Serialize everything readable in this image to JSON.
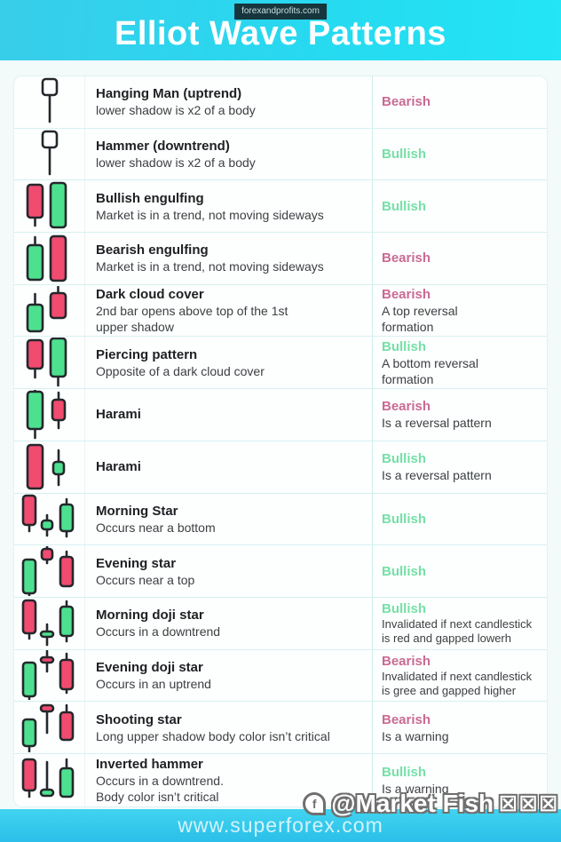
{
  "header": {
    "badge": "forexandprofits.com",
    "title": "Elliot Wave Patterns"
  },
  "footer": {
    "url": "www.superforex.com"
  },
  "watermark": {
    "icon": "messenger-icon",
    "icon_glyph": "f",
    "handle": "@Market Fish",
    "boxes": "☒☒☒"
  },
  "colors": {
    "header_cyan_left": "#38cdea",
    "header_cyan_right": "#22e5f5",
    "footer_cyan": "#2bbfe9",
    "bullish": "#74e0a7",
    "bearish": "#c96b93",
    "candle_red": "#f14b70",
    "candle_green": "#4de18f",
    "candle_white": "#ffffff",
    "outline": "#24282c"
  },
  "rows": [
    {
      "name": "Hanging Man (uptrend)",
      "desc": "lower shadow is x2 of a body",
      "signal": "Bearish",
      "type": "bearish",
      "note": "",
      "icon": "hanging-man-icon",
      "candles": [
        {
          "x": 24,
          "w": 16,
          "bt": 2,
          "bh": 18,
          "wt": 20,
          "wb": 50,
          "c": "w"
        }
      ]
    },
    {
      "name": "Hammer (downtrend)",
      "desc": "lower shadow is x2 of a body",
      "signal": "Bullish",
      "type": "bullish",
      "note": "",
      "icon": "hammer-icon",
      "candles": [
        {
          "x": 24,
          "w": 16,
          "bt": 2,
          "bh": 18,
          "wt": 20,
          "wb": 50,
          "c": "w"
        }
      ]
    },
    {
      "name": "Bullish engulfing",
      "desc": "Market is in a trend, not moving sideways",
      "signal": "Bullish",
      "type": "bullish",
      "note": "",
      "icon": "bullish-engulfing-icon",
      "candles": [
        {
          "x": 7,
          "w": 17,
          "bt": 4,
          "bh": 37,
          "wt": 41,
          "wb": 50,
          "c": "r"
        },
        {
          "x": 33,
          "w": 17,
          "bt": 2,
          "bh": 50,
          "c": "g"
        }
      ]
    },
    {
      "name": "Bearish engulfing",
      "desc": "Market is in a trend, not moving sideways",
      "signal": "Bearish",
      "type": "bearish",
      "note": "",
      "icon": "bearish-engulfing-icon",
      "candles": [
        {
          "x": 7,
          "w": 17,
          "bt": 13,
          "bh": 39,
          "wt": 4,
          "wb": 13,
          "c": "g"
        },
        {
          "x": 33,
          "w": 17,
          "bt": 3,
          "bh": 50,
          "c": "r"
        }
      ]
    },
    {
      "name": "Dark cloud cover",
      "desc": "2nd bar opens above top of the 1st\nupper shadow",
      "signal": "Bearish",
      "type": "bearish",
      "note": "A top reversal\nformation",
      "icon": "dark-cloud-cover-icon",
      "candles": [
        {
          "x": 7,
          "w": 17,
          "bt": 21,
          "bh": 30,
          "wt": 9,
          "wb": 21,
          "c": "g"
        },
        {
          "x": 33,
          "w": 17,
          "bt": 8,
          "bh": 28,
          "wt": 1,
          "wb": 8,
          "c": "r"
        }
      ]
    },
    {
      "name": "Piercing pattern",
      "desc": "Opposite of a dark cloud cover",
      "signal": "Bullish",
      "type": "bullish",
      "note": "A bottom reversal\nformation",
      "icon": "piercing-pattern-icon",
      "candles": [
        {
          "x": 7,
          "w": 17,
          "bt": 3,
          "bh": 32,
          "wt": 35,
          "wb": 45,
          "c": "r"
        },
        {
          "x": 33,
          "w": 17,
          "bt": 1,
          "bh": 43,
          "wt": 44,
          "wb": 54,
          "c": "g"
        }
      ]
    },
    {
      "name": "Harami",
      "desc": "",
      "signal": "Bearish",
      "type": "bearish",
      "note": "Is a reversal pattern",
      "icon": "harami-bearish-icon",
      "candles": [
        {
          "x": 7,
          "w": 17,
          "bt": 2,
          "bh": 42,
          "wt": 0,
          "wb": 54,
          "c": "g"
        },
        {
          "x": 35,
          "w": 14,
          "bt": 11,
          "bh": 23,
          "wt": 3,
          "wb": 43,
          "c": "r"
        }
      ]
    },
    {
      "name": "Harami",
      "desc": "",
      "signal": "Bullish",
      "type": "bullish",
      "note": "Is a reversal pattern",
      "icon": "harami-bullish-icon",
      "candles": [
        {
          "x": 7,
          "w": 17,
          "bt": 3,
          "bh": 49,
          "c": "r"
        },
        {
          "x": 36,
          "w": 12,
          "bt": 22,
          "bh": 14,
          "wt": 9,
          "wb": 48,
          "c": "g"
        }
      ]
    },
    {
      "name": "Morning Star",
      "desc": "Occurs near a bottom",
      "signal": "Bullish",
      "type": "bullish",
      "note": "",
      "icon": "morning-star-icon",
      "candles": [
        {
          "x": 2,
          "w": 14,
          "bt": 2,
          "bh": 33,
          "wt": 35,
          "wb": 42,
          "c": "r"
        },
        {
          "x": 23,
          "w": 12,
          "bt": 30,
          "bh": 10,
          "wt": 24,
          "wb": 47,
          "c": "g"
        },
        {
          "x": 44,
          "w": 14,
          "bt": 12,
          "bh": 30,
          "wt": 6,
          "wb": 48,
          "c": "g"
        }
      ]
    },
    {
      "name": "Evening star",
      "desc": "Occurs near a top",
      "signal": "Bullish",
      "type": "bullish",
      "note": "",
      "icon": "evening-star-icon",
      "candles": [
        {
          "x": 2,
          "w": 14,
          "bt": 15,
          "bh": 38,
          "wt": 53,
          "wb": 56,
          "c": "g"
        },
        {
          "x": 23,
          "w": 12,
          "bt": 3,
          "bh": 12,
          "wt": 0,
          "wb": 19,
          "c": "r"
        },
        {
          "x": 44,
          "w": 14,
          "bt": 12,
          "bh": 33,
          "wt": 6,
          "wb": 12,
          "c": "r"
        }
      ]
    },
    {
      "name": "Morning doji star",
      "desc": "Occurs in a downtrend",
      "signal": "Bullish",
      "type": "bullish",
      "note": "Invalidated if next candlestick\nis red and gapped lowerh",
      "note_small": true,
      "icon": "morning-doji-star-icon",
      "candles": [
        {
          "x": 2,
          "w": 14,
          "bt": 2,
          "bh": 37,
          "wt": 39,
          "wb": 45,
          "c": "r"
        },
        {
          "x": 22,
          "w": 14,
          "bt": 37,
          "bh": 6,
          "wt": 29,
          "wb": 52,
          "c": "g"
        },
        {
          "x": 44,
          "w": 14,
          "bt": 9,
          "bh": 33,
          "wt": 3,
          "wb": 48,
          "c": "g"
        }
      ]
    },
    {
      "name": "Evening doji star",
      "desc": "Occurs in an uptrend",
      "signal": "Bearish",
      "type": "bearish",
      "note": "Invalidated if next candlestick\nis gree and gapped higher",
      "note_small": true,
      "icon": "evening-doji-star-icon",
      "candles": [
        {
          "x": 2,
          "w": 14,
          "bt": 14,
          "bh": 38,
          "wt": 52,
          "wb": 56,
          "c": "g"
        },
        {
          "x": 22,
          "w": 14,
          "bt": 8,
          "bh": 6,
          "wt": 1,
          "wb": 24,
          "c": "r"
        },
        {
          "x": 44,
          "w": 14,
          "bt": 11,
          "bh": 33,
          "wt": 4,
          "wb": 48,
          "c": "r"
        }
      ]
    },
    {
      "name": "Shooting star",
      "desc": "Long upper shadow body color isn’t critical",
      "signal": "Bearish",
      "type": "bearish",
      "note": "Is a warning",
      "icon": "shooting-star-icon",
      "candles": [
        {
          "x": 2,
          "w": 14,
          "bt": 19,
          "bh": 30,
          "wt": 49,
          "wb": 55,
          "c": "g"
        },
        {
          "x": 22,
          "w": 14,
          "bt": 3,
          "bh": 7,
          "wt": 10,
          "wb": 34,
          "c": "r"
        },
        {
          "x": 44,
          "w": 14,
          "bt": 11,
          "bh": 31,
          "wt": 3,
          "wb": 11,
          "c": "r"
        }
      ]
    },
    {
      "name": "Inverted hammer",
      "desc": "Occurs in a downtrend.\nBody color isn’t critical",
      "signal": "Bullish",
      "type": "bullish",
      "note": "Is a warning",
      "icon": "inverted-hammer-icon",
      "candles": [
        {
          "x": 2,
          "w": 14,
          "bt": 5,
          "bh": 35,
          "wt": 40,
          "wb": 47,
          "c": "r"
        },
        {
          "x": 22,
          "w": 14,
          "bt": 39,
          "bh": 7,
          "wt": 8,
          "wb": 39,
          "c": "g"
        },
        {
          "x": 44,
          "w": 14,
          "bt": 15,
          "bh": 32,
          "wt": 5,
          "wb": 15,
          "c": "g"
        }
      ]
    }
  ]
}
